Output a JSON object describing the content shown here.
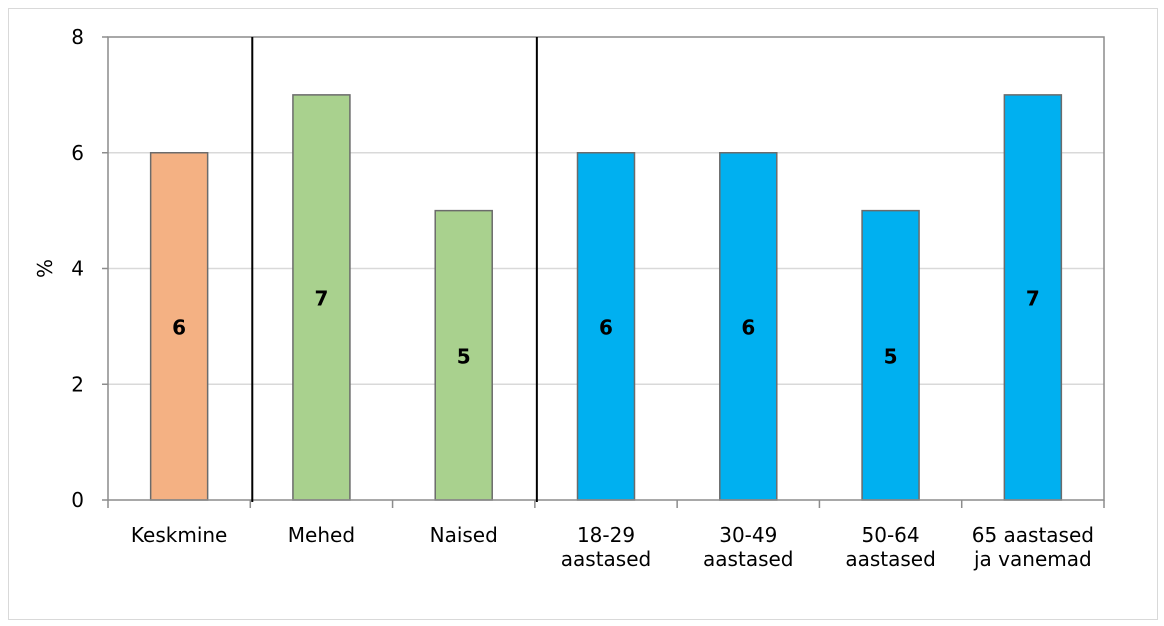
{
  "chart_data": {
    "type": "bar",
    "ylabel": "%",
    "ylim": [
      0,
      8
    ],
    "yticks": [
      0,
      2,
      4,
      6,
      8
    ],
    "grid": true,
    "categories": [
      [
        "Keskmine"
      ],
      [
        "Mehed"
      ],
      [
        "Naised"
      ],
      [
        "18-29",
        "aastased"
      ],
      [
        "30-49",
        "aastased"
      ],
      [
        "50-64",
        "aastased"
      ],
      [
        "65 aastased",
        "ja vanemad"
      ]
    ],
    "values": [
      6,
      7,
      5,
      6,
      6,
      5,
      7
    ],
    "data_labels": [
      "6",
      "7",
      "5",
      "6",
      "6",
      "5",
      "7"
    ],
    "bar_colors": [
      "#F4B183",
      "#A9D18E",
      "#A9D18E",
      "#00B0F0",
      "#00B0F0",
      "#00B0F0",
      "#00B0F0"
    ],
    "group_separators_after": [
      0,
      2
    ]
  }
}
